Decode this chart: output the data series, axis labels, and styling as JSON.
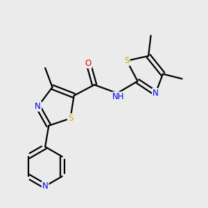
{
  "bg_color": "#ebebeb",
  "atom_colors": {
    "C": "#000000",
    "N": "#0000ee",
    "O": "#ee0000",
    "S": "#ccaa00",
    "H": "#000000",
    "NH": "#0000ee"
  },
  "figsize": [
    3.0,
    3.0
  ],
  "dpi": 100,
  "lw": 1.6,
  "off": 0.09,
  "fs": 8.5
}
